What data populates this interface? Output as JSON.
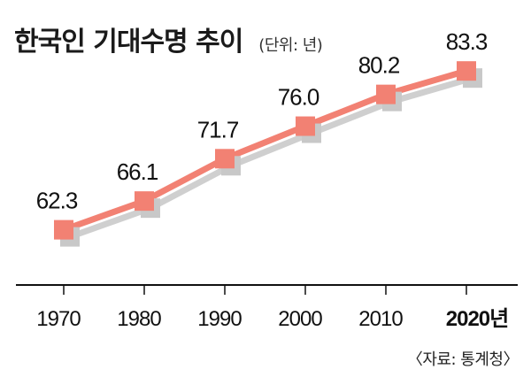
{
  "header": {
    "title": "한국인 기대수명 추이",
    "unit_note": "(단위: 년)"
  },
  "footer": {
    "source": "〈자료: 통계청〉"
  },
  "colors": {
    "series": "#f28173",
    "highlight_label": "#e8524a",
    "shadow": "#c8c8c8"
  },
  "chart_data": {
    "type": "line",
    "categories": [
      "1970",
      "1980",
      "1990",
      "2000",
      "2010",
      "2020년"
    ],
    "values": [
      62.3,
      66.1,
      71.7,
      76.0,
      80.2,
      83.3
    ],
    "value_labels": [
      "62.3",
      "66.1",
      "71.7",
      "76.0",
      "80.2",
      "83.3"
    ],
    "title": "한국인 기대수명 추이",
    "xlabel": "",
    "ylabel": "",
    "ylim": [
      55,
      88
    ],
    "grid": false,
    "highlight_last": true
  }
}
